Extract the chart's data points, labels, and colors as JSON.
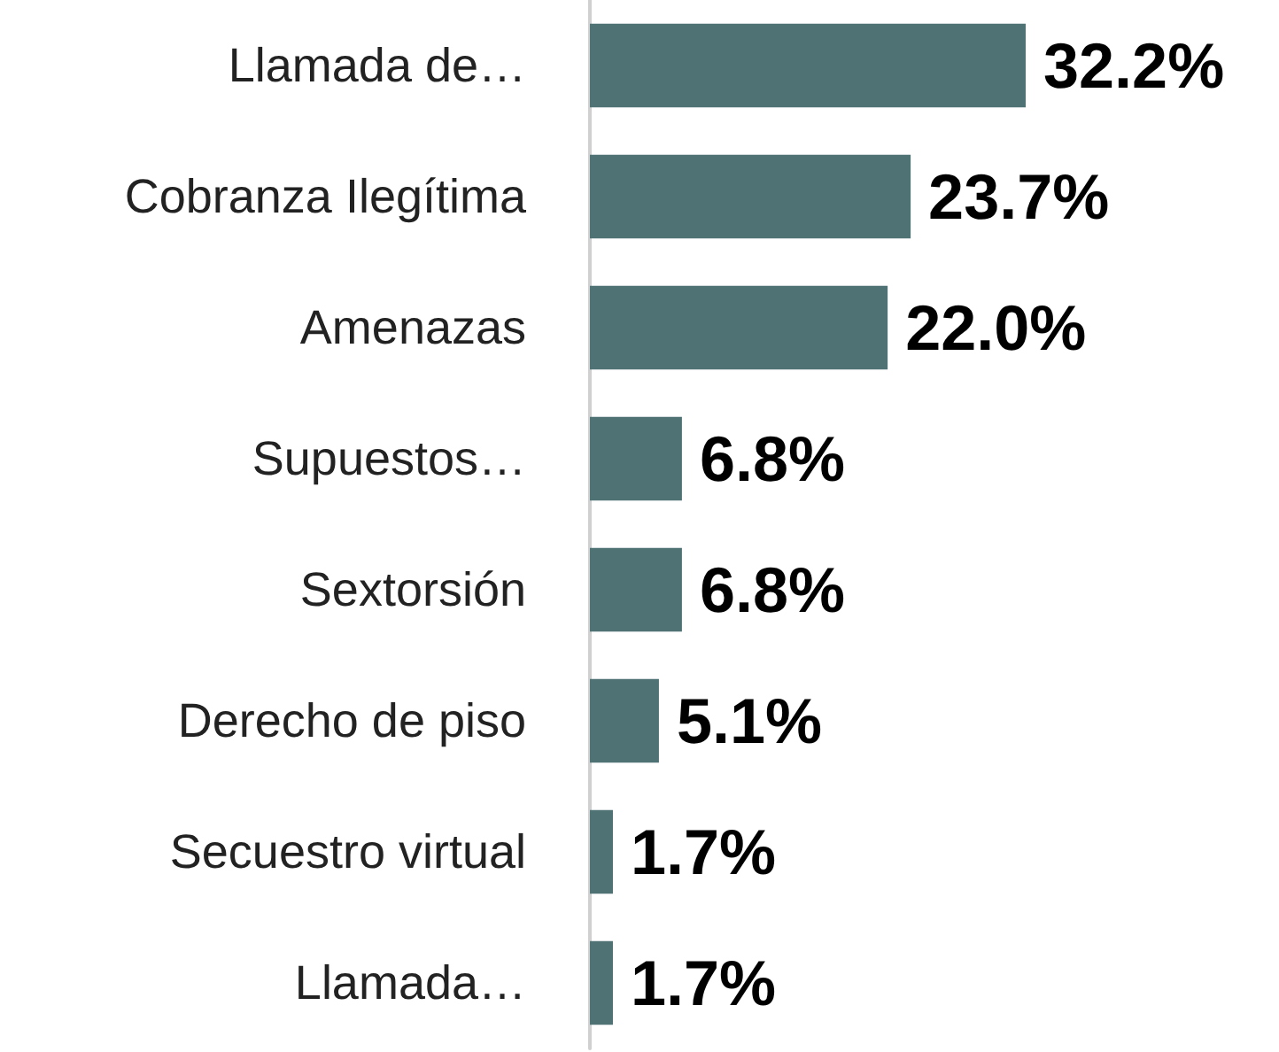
{
  "chart_data": {
    "type": "bar",
    "orientation": "horizontal",
    "categories": [
      "Llamada de…",
      "Cobranza Ilegítima",
      "Amenazas",
      "Supuestos…",
      "Sextorsión",
      "Derecho de piso",
      "Secuestro virtual",
      "Llamada…"
    ],
    "values": [
      32.2,
      23.7,
      22.0,
      6.8,
      6.8,
      5.1,
      1.7,
      1.7
    ],
    "value_labels": [
      "32.2%",
      "23.7%",
      "22.0%",
      "6.8%",
      "6.8%",
      "5.1%",
      "1.7%",
      "1.7%"
    ],
    "color": "#4f7274"
  }
}
